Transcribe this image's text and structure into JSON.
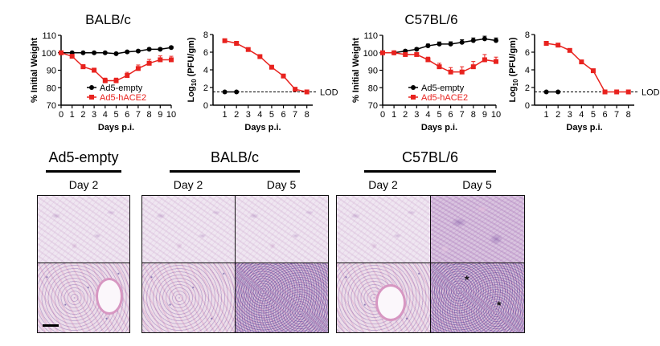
{
  "chart_data": [
    {
      "type": "line",
      "title": "BALB/c",
      "xlabel": "Days p.i.",
      "ylabel": "% Initial Weight",
      "xlim": [
        0,
        10
      ],
      "ylim": [
        70,
        110
      ],
      "xticks": [
        "0",
        "1",
        "2",
        "3",
        "4",
        "5",
        "6",
        "7",
        "8",
        "9",
        "10"
      ],
      "yticks": [
        "70",
        "80",
        "90",
        "100",
        "110"
      ],
      "legend_position": "bottom-left",
      "series": [
        {
          "name": "Ad5-empty",
          "color": "#000000",
          "marker": "circle",
          "x": [
            0,
            1,
            2,
            3,
            4,
            5,
            6,
            7,
            8,
            9,
            10
          ],
          "y": [
            100,
            100,
            100,
            100,
            100,
            99.5,
            100.5,
            101,
            102,
            102,
            103
          ],
          "err": [
            0,
            0,
            0,
            0,
            0,
            0.4,
            0.5,
            0.6,
            0.7,
            0.8,
            0.8
          ]
        },
        {
          "name": "Ad5-hACE2",
          "color": "#e8221e",
          "marker": "square",
          "x": [
            0,
            1,
            2,
            3,
            4,
            5,
            6,
            7,
            8,
            9,
            10
          ],
          "y": [
            100,
            98,
            92,
            90,
            84,
            84,
            87,
            91,
            94,
            96,
            96
          ],
          "err": [
            0,
            0.8,
            1.2,
            1.2,
            1.5,
            1.5,
            1.8,
            2.0,
            2.2,
            2.2,
            2.0
          ]
        }
      ]
    },
    {
      "type": "line",
      "title": "",
      "xlabel": "Days p.i.",
      "ylabel": "Log10 (PFU/gm)",
      "ylabel_main": "Log",
      "ylabel_sub": "10",
      "ylabel_rest": " (PFU/gm)",
      "xlim": [
        0,
        8.5
      ],
      "ylim": [
        0,
        8
      ],
      "xticks": [
        "1",
        "2",
        "3",
        "4",
        "5",
        "6",
        "7",
        "8"
      ],
      "yticks": [
        "0",
        "2",
        "4",
        "6",
        "8"
      ],
      "lod": 1.5,
      "lod_label": "LOD",
      "series": [
        {
          "name": "Ad5-empty",
          "color": "#000000",
          "marker": "circle",
          "x": [
            1,
            2
          ],
          "y": [
            1.5,
            1.5
          ]
        },
        {
          "name": "Ad5-hACE2",
          "color": "#e8221e",
          "marker": "square",
          "x": [
            1,
            2,
            3,
            4,
            5,
            6,
            7,
            8
          ],
          "y": [
            7.3,
            7.0,
            6.3,
            5.5,
            4.3,
            3.3,
            1.8,
            1.5
          ]
        }
      ]
    },
    {
      "type": "line",
      "title": "C57BL/6",
      "xlabel": "Days p.i.",
      "ylabel": "% Initial Weight",
      "xlim": [
        0,
        10
      ],
      "ylim": [
        70,
        110
      ],
      "xticks": [
        "0",
        "1",
        "2",
        "3",
        "4",
        "5",
        "6",
        "7",
        "8",
        "9",
        "10"
      ],
      "yticks": [
        "70",
        "80",
        "90",
        "100",
        "110"
      ],
      "legend_position": "bottom-left",
      "series": [
        {
          "name": "Ad5-empty",
          "color": "#000000",
          "marker": "circle",
          "x": [
            0,
            1,
            2,
            3,
            4,
            5,
            6,
            7,
            8,
            9,
            10
          ],
          "y": [
            100,
            100,
            101,
            102,
            104,
            105,
            105,
            106,
            107,
            108,
            107
          ],
          "err": [
            0,
            0.5,
            0.6,
            0.8,
            1.0,
            1.2,
            1.3,
            1.5,
            1.5,
            1.5,
            1.5
          ]
        },
        {
          "name": "Ad5-hACE2",
          "color": "#e8221e",
          "marker": "square",
          "x": [
            0,
            1,
            2,
            3,
            4,
            5,
            6,
            7,
            8,
            9,
            10
          ],
          "y": [
            100,
            100,
            99,
            99,
            96,
            92,
            89,
            89,
            92,
            96,
            95
          ],
          "err": [
            0,
            0.8,
            1.0,
            1.0,
            1.5,
            2.0,
            2.5,
            3.0,
            3.0,
            3.0,
            2.5
          ]
        }
      ]
    },
    {
      "type": "line",
      "title": "",
      "xlabel": "Days p.i.",
      "ylabel": "Log10 (PFU/gm)",
      "ylabel_main": "Log",
      "ylabel_sub": "10",
      "ylabel_rest": " (PFU/gm)",
      "xlim": [
        0,
        8.5
      ],
      "ylim": [
        0,
        8
      ],
      "xticks": [
        "1",
        "2",
        "3",
        "4",
        "5",
        "6",
        "7",
        "8"
      ],
      "yticks": [
        "0",
        "2",
        "4",
        "6",
        "8"
      ],
      "lod": 1.5,
      "lod_label": "LOD",
      "series": [
        {
          "name": "Ad5-empty",
          "color": "#000000",
          "marker": "circle",
          "x": [
            1,
            2
          ],
          "y": [
            1.5,
            1.5
          ]
        },
        {
          "name": "Ad5-hACE2",
          "color": "#e8221e",
          "marker": "square",
          "x": [
            1,
            2,
            3,
            4,
            5,
            6,
            7,
            8
          ],
          "y": [
            7.0,
            6.8,
            6.2,
            4.9,
            3.9,
            1.5,
            1.5,
            1.5
          ]
        }
      ]
    }
  ],
  "histology": {
    "groups": [
      {
        "title": "Ad5-empty",
        "days": [
          "Day 2"
        ]
      },
      {
        "title": "BALB/c",
        "days": [
          "Day 2",
          "Day 5"
        ]
      },
      {
        "title": "C57BL/6",
        "days": [
          "Day 2",
          "Day 5"
        ]
      }
    ],
    "asterisk": "*"
  }
}
